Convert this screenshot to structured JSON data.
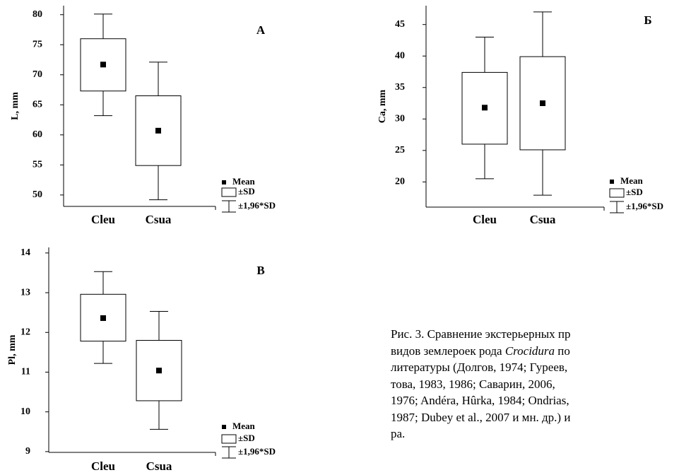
{
  "chart_data": [
    {
      "type": "box",
      "ylabel": "L, mm",
      "panel": "A",
      "categories": [
        "Cleu",
        "Csua"
      ],
      "boxes": [
        {
          "mean": 71.7,
          "sd_low": 67.3,
          "sd_high": 76.0,
          "whisker_low": 63.2,
          "whisker_high": 80.1
        },
        {
          "mean": 60.7,
          "sd_low": 54.9,
          "sd_high": 66.5,
          "whisker_low": 49.2,
          "whisker_high": 72.1
        }
      ],
      "ylim": [
        48.1,
        81.5
      ],
      "yticks": [
        50,
        55,
        60,
        65,
        70,
        75,
        80
      ],
      "legend_labels": [
        "Mean",
        "±SD",
        "±1,96*SD"
      ],
      "color": "#000000"
    },
    {
      "type": "box",
      "ylabel": "Ca, mm",
      "panel": "Б",
      "categories": [
        "Cleu",
        "Csua"
      ],
      "boxes": [
        {
          "mean": 31.8,
          "sd_low": 26.0,
          "sd_high": 37.4,
          "whisker_low": 20.5,
          "whisker_high": 43.0
        },
        {
          "mean": 32.5,
          "sd_low": 25.1,
          "sd_high": 39.9,
          "whisker_low": 17.9,
          "whisker_high": 47.0
        }
      ],
      "ylim": [
        16,
        48
      ],
      "yticks": [
        20,
        25,
        30,
        35,
        40,
        45
      ],
      "legend_labels": [
        "Mean",
        "±SD",
        "±1,96*SD"
      ],
      "color": "#000000"
    },
    {
      "type": "box",
      "ylabel": "Pl, mm",
      "panel": "B",
      "categories": [
        "Cleu",
        "Csua"
      ],
      "boxes": [
        {
          "mean": 12.36,
          "sd_low": 11.78,
          "sd_high": 12.96,
          "whisker_low": 11.22,
          "whisker_high": 13.53
        },
        {
          "mean": 11.04,
          "sd_low": 10.28,
          "sd_high": 11.8,
          "whisker_low": 9.56,
          "whisker_high": 12.53
        }
      ],
      "ylim": [
        8.98,
        14.14
      ],
      "yticks": [
        9,
        10,
        11,
        12,
        13,
        14
      ],
      "legend_labels": [
        "Mean",
        "±SD",
        "±1,96*SD"
      ],
      "color": "#000000"
    }
  ],
  "caption": {
    "lines": [
      [
        "Рис. 3. Сравнение экстерьерных пр"
      ],
      [
        "видов землероек рода ",
        "Crocidura",
        " по"
      ],
      [
        "литературы (Долгов, 1974; Гуреев,"
      ],
      [
        "това, 1983, 1986; Саварин, 2006,"
      ],
      [
        "1976; Andéra, Hûrka, 1984; Ondrias,"
      ],
      [
        "1987; Dubey et al., 2007 и мн. др.) и"
      ],
      [
        "ра."
      ]
    ]
  }
}
